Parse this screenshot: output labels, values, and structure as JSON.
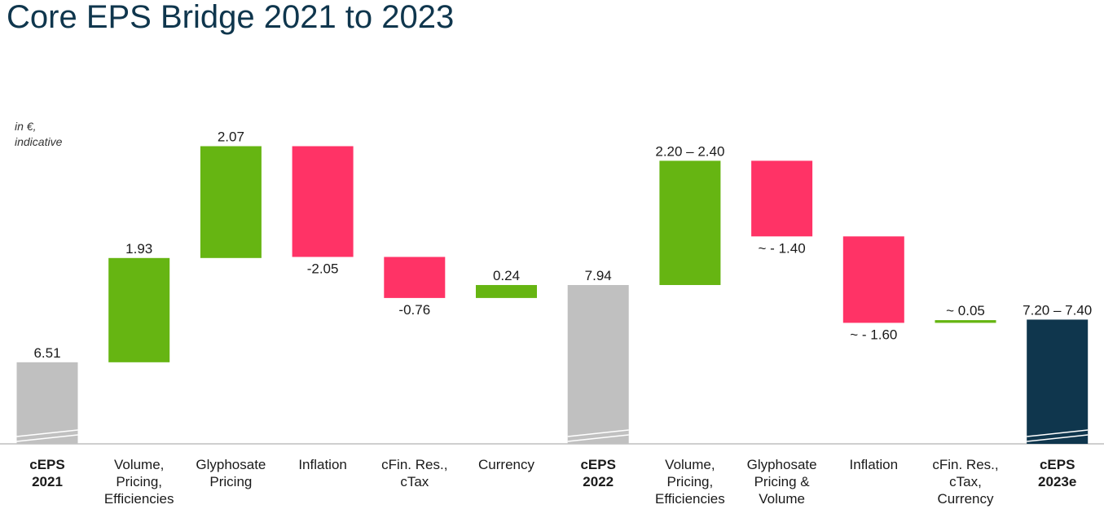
{
  "chart_data": {
    "type": "waterfall",
    "title": "Core EPS Bridge 2021 to 2023",
    "note": "in €,\nindicative",
    "categories": [
      "cEPS\n2021",
      "Volume,\nPricing,\nEfficiencies",
      "Glyphosate\nPricing",
      "Inflation",
      "cFin. Res.,\ncTax",
      "Currency",
      "cEPS\n2022",
      "Volume,\nPricing,\nEfficiencies",
      "Glyphosate\nPricing &\nVolume",
      "Inflation",
      "cFin. Res.,\ncTax,\nCurrency",
      "cEPS\n2023e"
    ],
    "measure": [
      "absolute",
      "relative",
      "relative",
      "relative",
      "relative",
      "relative",
      "absolute",
      "relative",
      "relative",
      "relative",
      "relative",
      "absolute"
    ],
    "values": [
      6.51,
      1.93,
      2.07,
      -2.05,
      -0.76,
      0.24,
      7.94,
      2.3,
      -1.4,
      -1.6,
      0.05,
      7.3
    ],
    "value_labels": [
      "6.51",
      "1.93",
      "2.07",
      "-2.05",
      "-0.76",
      "0.24",
      "7.94",
      "2.20 – 2.40",
      "~ - 1.40",
      "~ - 1.60",
      "~ 0.05",
      "7.20 – 7.40"
    ],
    "colors": [
      "#c0c0c0",
      "#66b512",
      "#66b512",
      "#ff3366",
      "#ff3366",
      "#66b512",
      "#c0c0c0",
      "#66b512",
      "#ff3366",
      "#ff3366",
      "#66b512",
      "#0f364d"
    ],
    "ylim": [
      5,
      11
    ]
  }
}
